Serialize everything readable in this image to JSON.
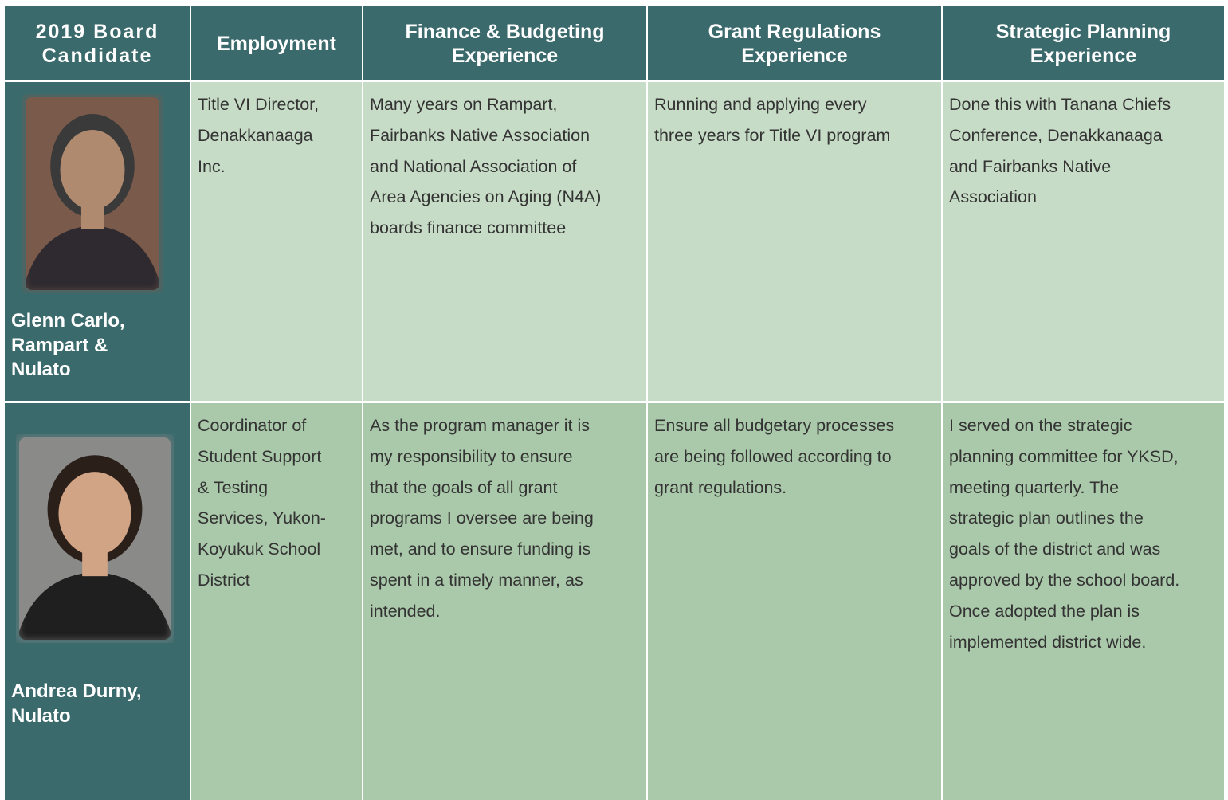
{
  "table": {
    "headers": [
      [
        "2019 Board",
        "Candidate"
      ],
      [
        "Employment"
      ],
      [
        "Finance & Budgeting",
        "Experience"
      ],
      [
        "Grant Regulations",
        "Experience"
      ],
      [
        "Strategic Planning",
        "Experience"
      ]
    ],
    "rows": [
      {
        "candidate": [
          "Glenn Carlo,",
          "Rampart &",
          "Nulato"
        ],
        "cells": [
          [
            "Title VI Director,",
            "Denakkanaaga",
            "Inc."
          ],
          [
            "Many years on Rampart,",
            "Fairbanks Native Association",
            "and National Association of",
            "Area Agencies on Aging (N4A)",
            "boards finance committee"
          ],
          [
            "Running and applying every",
            "three years for Title VI program"
          ],
          [
            "Done this with Tanana Chiefs",
            "Conference, Denakkanaaga",
            "and Fairbanks Native",
            "Association"
          ]
        ]
      },
      {
        "candidate": [
          "Andrea Durny,",
          "Nulato"
        ],
        "cells": [
          [
            "Coordinator of",
            "Student Support",
            "& Testing",
            "Services, Yukon-",
            "Koyukuk School",
            "District"
          ],
          [
            "As the program manager it is",
            "my responsibility to ensure",
            "that the goals of all grant",
            "programs I oversee are being",
            "met, and to ensure funding is",
            "spent in a timely manner, as",
            "intended."
          ],
          [
            "Ensure all budgetary processes",
            "are being followed according to",
            "grant regulations."
          ],
          [
            "I served on the strategic",
            "planning committee for YKSD,",
            "meeting quarterly. The",
            "strategic plan outlines the",
            "goals of the district and was",
            "approved by the school board.",
            "Once adopted the plan is",
            "implemented district wide."
          ]
        ]
      }
    ]
  }
}
